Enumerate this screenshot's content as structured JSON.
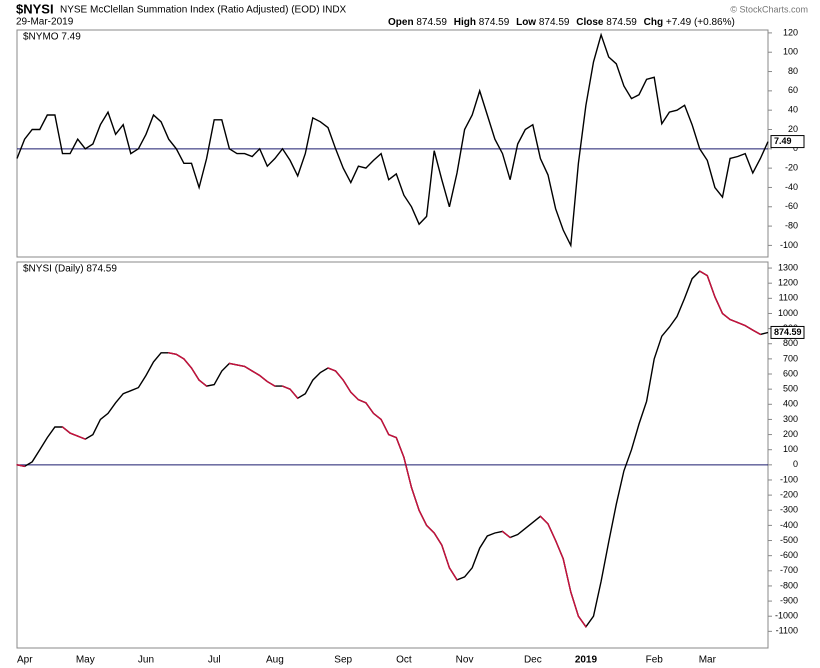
{
  "header": {
    "symbol": "$NYSI",
    "description": "NYSE McClellan Summation Index (Ratio Adjusted) (EOD) INDX",
    "date": "29-Mar-2019",
    "quote": [
      {
        "label": "Open",
        "value": "874.59"
      },
      {
        "label": "High",
        "value": "874.59"
      },
      {
        "label": "Low",
        "value": "874.59"
      },
      {
        "label": "Close",
        "value": "874.59"
      },
      {
        "label": "Chg",
        "value": "+7.49 (+0.86%)"
      }
    ],
    "credit": "© StockCharts.com"
  },
  "chart_data": [
    {
      "type": "line",
      "label": "$NYMO 7.49",
      "color": "#000000",
      "hline": 0,
      "hline_color": "#1a1a6e",
      "ylim": [
        -112,
        123
      ],
      "yticks": [
        -100,
        -80,
        -60,
        -40,
        -20,
        0,
        20,
        40,
        60,
        80,
        100,
        120
      ],
      "values": [
        -10,
        10,
        20,
        20,
        35,
        35,
        -5,
        -5,
        10,
        0,
        5,
        25,
        38,
        15,
        25,
        -5,
        0,
        15,
        35,
        28,
        10,
        0,
        -15,
        -15,
        -40,
        -10,
        30,
        30,
        0,
        -5,
        -5,
        -8,
        0,
        -18,
        -10,
        0,
        -12,
        -28,
        -5,
        32,
        28,
        22,
        0,
        -20,
        -35,
        -18,
        -20,
        -12,
        -5,
        -32,
        -26,
        -48,
        -60,
        -78,
        -70,
        -2,
        -32,
        -60,
        -25,
        20,
        35,
        60,
        35,
        10,
        -5,
        -32,
        5,
        20,
        25,
        -10,
        -27,
        -62,
        -84,
        -100,
        -15,
        45,
        90,
        118,
        95,
        88,
        65,
        52,
        56,
        72,
        74,
        26,
        38,
        40,
        45,
        25,
        0,
        -12,
        -40,
        -50,
        -10,
        -8,
        -5,
        -25,
        -10,
        7.49
      ]
    },
    {
      "type": "line",
      "label": "$NYSI (Daily) 874.59",
      "color": "#000000",
      "decline_color": "#c8103c",
      "hline": 0,
      "hline_color": "#1a1a6e",
      "ylim": [
        -1210,
        1340
      ],
      "yticks": [
        -1100,
        -1000,
        -900,
        -800,
        -700,
        -600,
        -500,
        -400,
        -300,
        -200,
        -100,
        0,
        100,
        200,
        300,
        400,
        500,
        600,
        700,
        800,
        900,
        1000,
        1100,
        1200,
        1300
      ],
      "categories": [
        "Apr",
        null,
        null,
        null,
        null,
        null,
        null,
        null,
        null,
        "May",
        null,
        null,
        null,
        null,
        null,
        null,
        null,
        "Jun",
        null,
        null,
        null,
        null,
        null,
        null,
        null,
        null,
        "Jul",
        null,
        null,
        null,
        null,
        null,
        null,
        null,
        "Aug",
        null,
        null,
        null,
        null,
        null,
        null,
        null,
        null,
        "Sep",
        null,
        null,
        null,
        null,
        null,
        null,
        null,
        "Oct",
        null,
        null,
        null,
        null,
        null,
        null,
        null,
        "Nov",
        null,
        null,
        null,
        null,
        null,
        null,
        null,
        null,
        "Dec",
        null,
        null,
        null,
        null,
        null,
        null,
        "2019",
        null,
        null,
        null,
        null,
        null,
        null,
        null,
        null,
        "Feb",
        null,
        null,
        null,
        null,
        null,
        null,
        "Mar",
        null,
        null,
        null,
        null,
        null,
        null,
        null,
        null
      ],
      "values": [
        0,
        -10,
        20,
        100,
        180,
        250,
        250,
        210,
        190,
        170,
        200,
        300,
        340,
        410,
        470,
        490,
        510,
        590,
        680,
        740,
        740,
        730,
        700,
        640,
        560,
        520,
        530,
        620,
        670,
        660,
        650,
        620,
        590,
        550,
        520,
        520,
        500,
        440,
        470,
        560,
        610,
        640,
        620,
        560,
        480,
        430,
        410,
        340,
        300,
        200,
        180,
        50,
        -150,
        -300,
        -400,
        -450,
        -530,
        -680,
        -760,
        -740,
        -680,
        -550,
        -470,
        -450,
        -440,
        -480,
        -460,
        -420,
        -380,
        -340,
        -390,
        -500,
        -620,
        -840,
        -1000,
        -1070,
        -1000,
        -770,
        -510,
        -260,
        -40,
        100,
        270,
        420,
        700,
        850,
        910,
        980,
        1100,
        1230,
        1280,
        1250,
        1110,
        1000,
        960,
        940,
        920,
        890,
        862,
        874.59
      ]
    }
  ]
}
